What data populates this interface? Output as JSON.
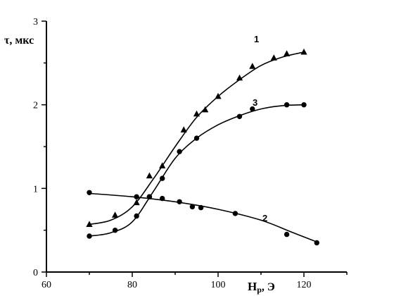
{
  "chart_data": {
    "type": "scatter",
    "title": "",
    "ylabel": "τ, мкс",
    "xlabel_main": "H",
    "xlabel_sub": "p",
    "xlabel_unit": ", Э",
    "xlim": [
      60,
      130
    ],
    "ylim": [
      0,
      3
    ],
    "x_ticks": [
      60,
      80,
      100,
      120
    ],
    "y_ticks": [
      0,
      1,
      2,
      3
    ],
    "grid": false,
    "legend": "none",
    "series": [
      {
        "name": "1",
        "marker": "triangle",
        "points": [
          [
            70,
            0.57
          ],
          [
            76,
            0.68
          ],
          [
            81,
            0.83
          ],
          [
            84,
            1.15
          ],
          [
            87,
            1.27
          ],
          [
            92,
            1.7
          ],
          [
            95,
            1.89
          ],
          [
            97,
            1.94
          ],
          [
            100,
            2.1
          ],
          [
            105,
            2.32
          ],
          [
            108,
            2.46
          ],
          [
            113,
            2.56
          ],
          [
            116,
            2.61
          ],
          [
            120,
            2.63
          ]
        ],
        "curve": [
          [
            70,
            0.57
          ],
          [
            75,
            0.62
          ],
          [
            80,
            0.78
          ],
          [
            85,
            1.12
          ],
          [
            90,
            1.5
          ],
          [
            95,
            1.85
          ],
          [
            100,
            2.1
          ],
          [
            105,
            2.3
          ],
          [
            110,
            2.47
          ],
          [
            115,
            2.57
          ],
          [
            120,
            2.63
          ]
        ]
      },
      {
        "name": "2",
        "marker": "circle",
        "points": [
          [
            70,
            0.95
          ],
          [
            81,
            0.9
          ],
          [
            84,
            0.9
          ],
          [
            87,
            0.88
          ],
          [
            91,
            0.84
          ],
          [
            94,
            0.78
          ],
          [
            96,
            0.77
          ],
          [
            104,
            0.7
          ],
          [
            116,
            0.45
          ],
          [
            123,
            0.35
          ]
        ],
        "curve": [
          [
            70,
            0.94
          ],
          [
            80,
            0.9
          ],
          [
            90,
            0.84
          ],
          [
            100,
            0.75
          ],
          [
            110,
            0.62
          ],
          [
            117,
            0.48
          ],
          [
            123,
            0.36
          ]
        ]
      },
      {
        "name": "3",
        "marker": "circle",
        "points": [
          [
            70,
            0.43
          ],
          [
            76,
            0.5
          ],
          [
            81,
            0.67
          ],
          [
            84,
            0.9
          ],
          [
            87,
            1.12
          ],
          [
            91,
            1.44
          ],
          [
            95,
            1.6
          ],
          [
            105,
            1.86
          ],
          [
            108,
            1.95
          ],
          [
            116,
            2.0
          ],
          [
            120,
            2.0
          ]
        ],
        "curve": [
          [
            70,
            0.43
          ],
          [
            75,
            0.47
          ],
          [
            80,
            0.6
          ],
          [
            85,
            0.97
          ],
          [
            90,
            1.36
          ],
          [
            95,
            1.6
          ],
          [
            100,
            1.76
          ],
          [
            105,
            1.87
          ],
          [
            110,
            1.95
          ],
          [
            115,
            1.99
          ],
          [
            120,
            2.0
          ]
        ]
      }
    ]
  }
}
